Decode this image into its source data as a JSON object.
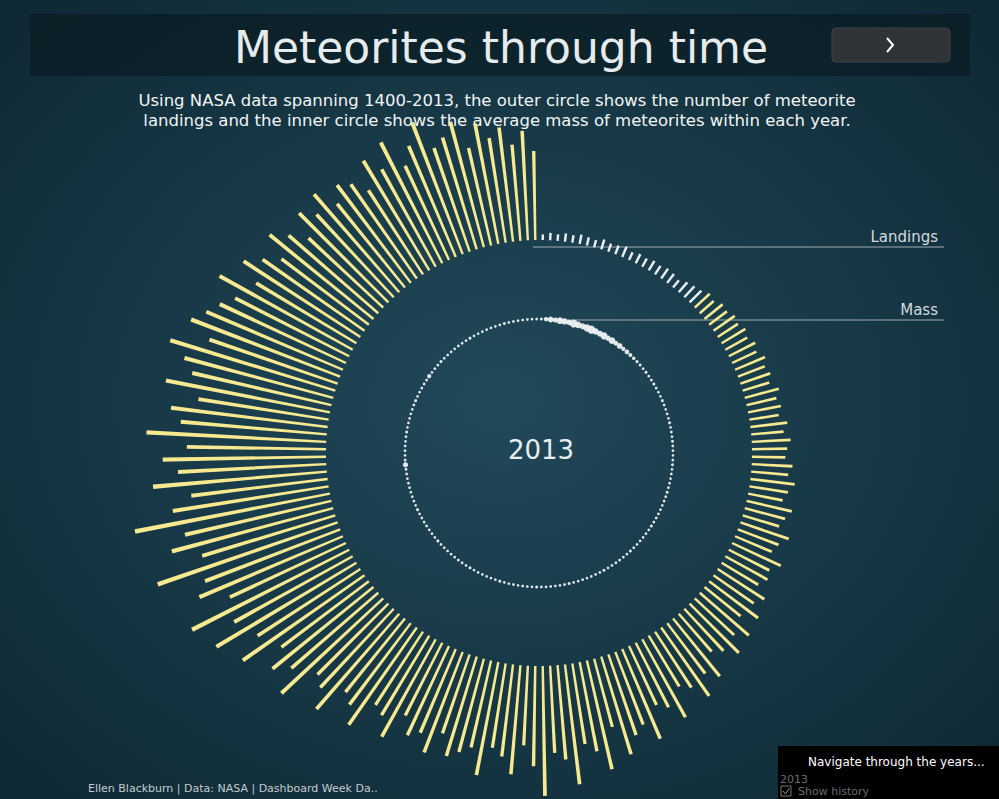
{
  "center_label": "2013",
  "footer": "Ellen Blackburn | Data: NASA | Dashboard Week Da..",
  "control": {
    "title": "Navigate through the years...",
    "value": "2013",
    "checkbox": "Show history"
  },
  "chart_data": {
    "type": "polar_bar",
    "title": "Meteorites through time",
    "subtitle": [
      "Using NASA data spanning 1400-2013, the outer circle shows the number of meteorite",
      "landings and the inner circle shows the average mass of meteorites within each year."
    ],
    "tick_labels": false,
    "grid": false,
    "ylim": [
      0,
      250
    ],
    "series": [
      {
        "name": "Landings",
        "type": "bar",
        "colors": [
          "#e9eef0",
          "#e9eef0",
          "#e9eef0",
          "#e9eef0",
          "#e9eef0",
          "#e9eef0",
          "#e9eef0",
          "#e9eef0",
          "#e9eef0",
          "#e9eef0",
          "#e9eef0",
          "#e9eef0",
          "#e9eef0",
          "#e9eef0",
          "#e9eef0",
          "#e9eef0",
          "#e9eef0",
          "#e9eef0",
          "#e9eef0",
          "#e9eef0",
          "#e9eef0",
          "#e9eef0",
          "#e9eef0",
          "#f6e98f",
          "#f6e98f",
          "#f6e98f",
          "#f6e98f",
          "#f6e98f",
          "#f6e98f",
          "#f6e98f",
          "#f6e98f",
          "#f6e98f",
          "#f6e98f",
          "#f6e98f",
          "#f6e98f",
          "#f6e98f",
          "#f6e98f",
          "#f6e98f",
          "#f6e98f",
          "#f6e98f",
          "#f6e98f",
          "#f6e98f",
          "#f6e98f",
          "#f6e98f",
          "#f6e98f",
          "#f6e98f",
          "#f6e98f",
          "#f6e98f",
          "#f6e98f",
          "#f6e98f",
          "#f6e98f",
          "#f6e98f",
          "#f6e98f",
          "#f6e98f",
          "#f6e98f",
          "#f6e98f",
          "#f6e98f",
          "#f6e98f",
          "#f6e98f",
          "#f6e98f",
          "#f6e98f",
          "#f6e98f",
          "#f6e98f",
          "#f6e98f",
          "#f6e98f",
          "#f6e98f",
          "#f6e98f",
          "#f6e98f",
          "#f6e98f",
          "#f6e98f",
          "#f6e98f",
          "#f6e98f",
          "#f6e98f",
          "#f6e98f",
          "#f6e98f",
          "#f6e98f",
          "#f6e98f",
          "#f6e98f",
          "#f6e98f",
          "#f6e98f",
          "#f6e98f",
          "#f6e98f",
          "#f6e98f",
          "#f6e98f",
          "#f6e98f",
          "#f6e98f",
          "#f6e98f",
          "#f6e98f",
          "#f6e98f",
          "#f6e98f",
          "#f6e98f",
          "#f6e98f",
          "#f6e98f",
          "#f6e98f",
          "#f6e98f",
          "#f6e98f",
          "#f6e98f",
          "#f6e98f",
          "#f6e98f",
          "#f6e98f",
          "#f6e98f",
          "#f6e98f",
          "#f6e98f",
          "#f6e98f",
          "#f6e98f",
          "#f6e98f",
          "#f6e98f",
          "#f6e98f",
          "#f6e98f",
          "#f6e98f",
          "#f6e98f",
          "#f6e98f",
          "#f6e98f",
          "#f6e98f",
          "#f6e98f",
          "#f6e98f",
          "#f6e98f",
          "#f6e98f",
          "#f6e98f",
          "#f6e98f",
          "#f6e98f",
          "#f6e98f",
          "#f6e98f",
          "#f6e98f",
          "#f6e98f",
          "#f6e98f",
          "#f6e98f",
          "#f6e98f",
          "#f6e98f",
          "#f6e98f",
          "#f6e98f",
          "#f6e98f",
          "#f6e98f",
          "#f6e98f",
          "#f6e98f",
          "#f6e98f",
          "#f6e98f",
          "#f6e98f",
          "#f6e98f",
          "#f6e98f",
          "#f6e98f",
          "#f6e98f",
          "#f6e98f",
          "#f6e98f",
          "#f6e98f",
          "#f6e98f",
          "#f6e98f",
          "#f6e98f",
          "#f6e98f",
          "#f6e98f",
          "#f6e98f",
          "#f6e98f",
          "#f6e98f",
          "#f6e98f",
          "#f6e98f",
          "#f6e98f",
          "#f6e98f",
          "#f6e98f",
          "#f6e98f",
          "#f6e98f",
          "#f6e98f",
          "#f6e98f",
          "#f6e98f",
          "#f6e98f",
          "#f6e98f",
          "#f6e98f",
          "#f6e98f",
          "#f6e98f",
          "#f6e98f",
          "#f6e98f",
          "#f6e98f",
          "#f6e98f",
          "#f6e98f",
          "#f6e98f",
          "#f6e98f",
          "#f6e98f",
          "#f6e98f",
          "#f6e98f",
          "#f6e98f",
          "#f6e98f"
        ],
        "values": [
          6,
          8,
          7,
          9,
          8,
          10,
          9,
          8,
          11,
          9,
          10,
          12,
          9,
          11,
          10,
          12,
          11,
          13,
          12,
          10,
          14,
          16,
          18,
          22,
          20,
          25,
          24,
          28,
          26,
          30,
          27,
          32,
          29,
          35,
          31,
          34,
          30,
          38,
          33,
          36,
          32,
          40,
          35,
          42,
          38,
          36,
          44,
          40,
          48,
          42,
          38,
          50,
          45,
          41,
          55,
          47,
          43,
          58,
          49,
          52,
          46,
          60,
          53,
          66,
          50,
          70,
          58,
          75,
          62,
          54,
          80,
          68,
          90,
          72,
          64,
          96,
          78,
          70,
          105,
          84,
          92,
          110,
          76,
          120,
          98,
          88,
          130,
          102,
          94,
          140,
          108,
          86,
          118,
          100,
          92,
          124,
          96,
          104,
          112,
          90,
          116,
          98,
          106,
          88,
          120,
          100,
          94,
          128,
          110,
          102,
          136,
          116,
          108,
          150,
          124,
          140,
          118,
          160,
          132,
          176,
          146,
          190,
          138,
          168,
          156,
          205,
          150,
          180,
          162,
          214,
          170,
          148,
          188,
          160,
          176,
          150,
          194,
          158,
          170,
          142,
          180,
          154,
          166,
          186,
          146,
          172,
          160,
          150,
          138,
          164,
          126,
          150,
          134,
          118,
          144,
          128,
          110,
          136,
          122,
          140,
          116,
          132,
          124,
          108,
          138,
          120,
          146,
          112,
          130,
          152,
          118,
          126,
          140,
          108,
          132,
          114,
          124,
          104,
          118,
          96
        ]
      },
      {
        "name": "Mass",
        "type": "scatter",
        "color": "#eef3f5",
        "values": [
          3,
          12,
          25,
          18,
          40,
          30,
          22,
          55,
          35,
          28,
          48,
          60,
          33,
          26,
          45,
          20,
          38,
          15,
          24,
          10,
          14,
          8,
          6,
          4,
          3,
          2,
          3,
          2,
          2,
          3,
          2,
          2,
          2,
          3,
          2,
          2,
          2,
          2,
          3,
          2,
          2,
          2,
          3,
          2,
          2,
          2,
          2,
          3,
          2,
          2,
          2,
          2,
          2,
          3,
          2,
          2,
          2,
          2,
          2,
          2,
          2,
          3,
          2,
          2,
          2,
          2,
          2,
          2,
          3,
          2,
          2,
          2,
          2,
          2,
          2,
          3,
          2,
          2,
          2,
          2,
          2,
          2,
          2,
          3,
          2,
          2,
          2,
          2,
          2,
          2,
          3,
          2,
          2,
          2,
          2,
          2,
          2,
          2,
          3,
          2,
          2,
          2,
          2,
          2,
          2,
          3,
          2,
          2,
          2,
          2,
          2,
          2,
          2,
          2,
          3,
          2,
          2,
          2,
          2,
          2,
          2,
          2,
          3,
          2,
          2,
          2,
          2,
          2,
          2,
          2,
          2,
          3,
          20,
          2,
          2,
          2,
          2,
          2,
          2,
          3,
          2,
          2,
          2,
          2,
          2,
          2,
          3,
          2,
          2,
          2,
          2,
          2,
          10,
          2,
          2,
          2,
          3,
          2,
          2,
          2,
          2,
          2,
          2,
          2,
          3,
          2,
          2,
          2,
          2,
          2,
          2,
          2,
          3,
          2,
          2,
          2,
          2,
          2,
          2,
          2
        ]
      }
    ]
  }
}
